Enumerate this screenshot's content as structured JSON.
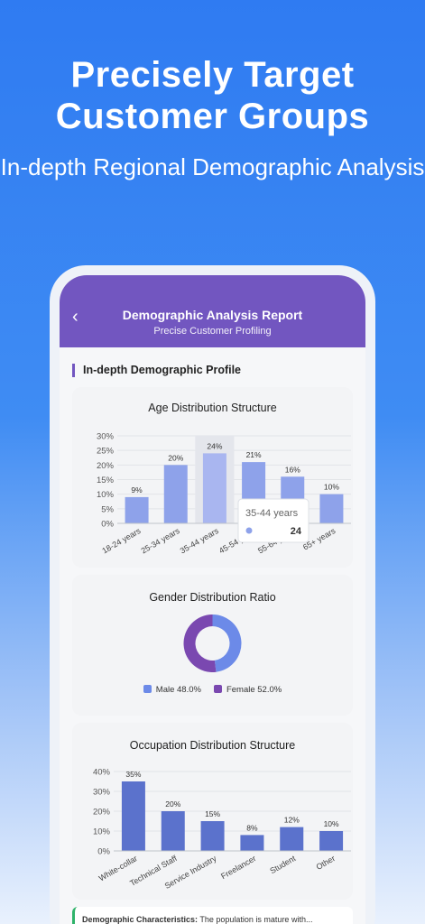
{
  "promo": {
    "title": "Precisely Target Customer Groups",
    "subtitle": "In-depth Regional Demographic Analysis"
  },
  "app": {
    "back_icon": "chevron-left-icon",
    "title": "Demographic Analysis Report",
    "subtitle": "Precise Customer Profiling",
    "section_title": "In-depth Demographic Profile"
  },
  "colors": {
    "purple": "#7256c0",
    "bar": "#8ea2ea",
    "bar_dark": "#5b72cc",
    "male": "#6c8ae8",
    "female": "#7a48b0",
    "accent_green": "#2fb36a"
  },
  "tooltip": {
    "label": "35-44 years",
    "value": "24"
  },
  "note": {
    "bold": "Demographic Characteristics:",
    "text": " The population is mature with..."
  },
  "chart_data": [
    {
      "type": "bar",
      "title": "Age Distribution Structure",
      "categories": [
        "18-24 years",
        "25-34 years",
        "35-44 years",
        "45-54 years",
        "55-64 years",
        "65+ years"
      ],
      "values": [
        9,
        20,
        24,
        21,
        16,
        10
      ],
      "value_labels": [
        "9%",
        "20%",
        "24%",
        "21%",
        "16%",
        "10%"
      ],
      "yticks": [
        "0%",
        "5%",
        "10%",
        "15%",
        "20%",
        "25%",
        "30%"
      ],
      "ylim": [
        0,
        30
      ],
      "highlight_index": 2,
      "grid": true
    },
    {
      "type": "pie",
      "title": "Gender Distribution Ratio",
      "slices": [
        {
          "name": "Male 48.0%",
          "value": 48.0
        },
        {
          "name": "Female 52.0%",
          "value": 52.0
        }
      ],
      "legend_position": "bottom"
    },
    {
      "type": "bar",
      "title": "Occupation Distribution Structure",
      "categories": [
        "White-collar",
        "Technical Staff",
        "Service Industry",
        "Freelancer",
        "Student",
        "Other"
      ],
      "values": [
        35,
        20,
        15,
        8,
        12,
        10
      ],
      "value_labels": [
        "35%",
        "20%",
        "15%",
        "8%",
        "12%",
        "10%"
      ],
      "yticks": [
        "0%",
        "10%",
        "20%",
        "30%",
        "40%"
      ],
      "ylim": [
        0,
        40
      ],
      "grid": true
    }
  ]
}
